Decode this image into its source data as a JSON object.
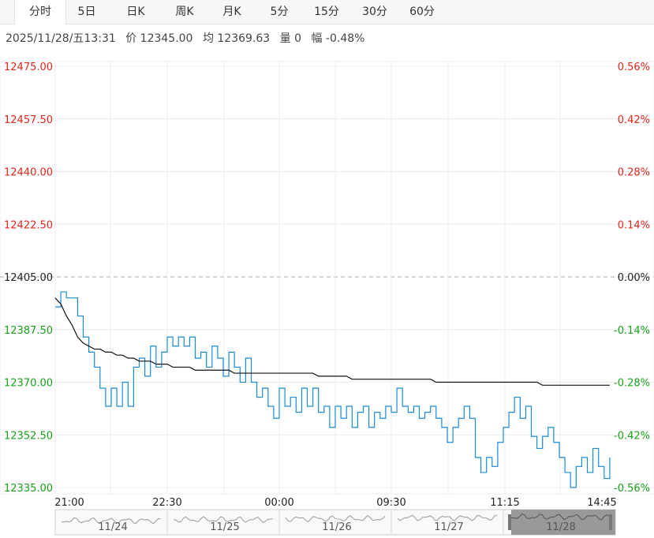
{
  "tabs": [
    {
      "label": "分时",
      "active": true
    },
    {
      "label": "5日",
      "active": false
    },
    {
      "label": "日K",
      "active": false
    },
    {
      "label": "周K",
      "active": false
    },
    {
      "label": "月K",
      "active": false
    },
    {
      "label": "5分",
      "active": false
    },
    {
      "label": "15分",
      "active": false
    },
    {
      "label": "30分",
      "active": false
    },
    {
      "label": "60分",
      "active": false
    }
  ],
  "info": {
    "datetime": "2025/11/28/五13:31",
    "price": "价 12345.00",
    "avg": "均 12369.63",
    "volume": "量 0",
    "change": "幅 -0.48%"
  },
  "colors": {
    "up": "#e0281c",
    "down": "#1aa31a",
    "neutral": "#222222",
    "price_line": "#1a8ad4",
    "avg_line": "#111111",
    "grid": "#ececec"
  },
  "chart_data": {
    "type": "line",
    "xlabels": [
      "21:00",
      "22:30",
      "00:00",
      "09:30",
      "11:15",
      "14:45"
    ],
    "ylim": [
      12335,
      12475
    ],
    "base": 12405.0,
    "left_ticks": [
      "12475.00",
      "12457.50",
      "12440.00",
      "12422.50",
      "12405.00",
      "12387.50",
      "12370.00",
      "12352.50",
      "12335.00"
    ],
    "right_ticks": [
      "0.56%",
      "0.42%",
      "0.28%",
      "0.14%",
      "0.00%",
      "-0.14%",
      "-0.28%",
      "-0.42%",
      "-0.56%"
    ],
    "x_total": 100,
    "series": [
      {
        "values": [
          12395,
          12400,
          12398,
          12398,
          12392,
          12385,
          12380,
          12375,
          12368,
          12362,
          12368,
          12362,
          12370,
          12362,
          12375,
          12378,
          12372,
          12382,
          12375,
          12380,
          12385,
          12382,
          12385,
          12382,
          12385,
          12378,
          12380,
          12375,
          12382,
          12378,
          12372,
          12380,
          12375,
          12370,
          12378,
          12370,
          12365,
          12368,
          12362,
          12358,
          12368,
          12362,
          12365,
          12360,
          12368,
          12362,
          12368,
          12360,
          12362,
          12355,
          12362,
          12358,
          12362,
          12355,
          12360,
          12362,
          12355,
          12360,
          12358,
          12362,
          12360,
          12368,
          12362,
          12360,
          12362,
          12358,
          12360,
          12362,
          12358,
          12355,
          12350,
          12355,
          12358,
          12362,
          12358,
          12345,
          12340,
          12345,
          12342,
          12350,
          12355,
          12360,
          12365,
          12358,
          12362,
          12352,
          12348,
          12352,
          12355,
          12350,
          12345,
          12340,
          12335,
          12342,
          12345,
          12340,
          12348,
          12342,
          12338,
          12345
        ]
      },
      {
        "values": [
          12398,
          12396,
          12392,
          12389,
          12385,
          12383,
          12382,
          12381,
          12381,
          12380,
          12380,
          12379,
          12379,
          12378,
          12378,
          12377,
          12377,
          12377,
          12376,
          12376,
          12376,
          12375,
          12375,
          12375,
          12375,
          12374,
          12374,
          12374,
          12374,
          12374,
          12374,
          12374,
          12373,
          12373,
          12373,
          12373,
          12373,
          12373,
          12373,
          12373,
          12373,
          12373,
          12373,
          12373,
          12373,
          12373,
          12373,
          12372,
          12372,
          12372,
          12372,
          12372,
          12372,
          12371,
          12371,
          12371,
          12371,
          12371,
          12371,
          12371,
          12371,
          12371,
          12371,
          12371,
          12371,
          12371,
          12371,
          12371,
          12370,
          12370,
          12370,
          12370,
          12370,
          12370,
          12370,
          12370,
          12370,
          12370,
          12370,
          12370,
          12370,
          12370,
          12370,
          12370,
          12370,
          12370,
          12370,
          12369,
          12369,
          12369,
          12369,
          12369,
          12369,
          12369,
          12369,
          12369,
          12369,
          12369,
          12369,
          12369
        ]
      }
    ],
    "navigator": {
      "labels": [
        "11/24",
        "11/25",
        "11/26",
        "11/27",
        "11/28"
      ],
      "selected": "11/28"
    }
  }
}
